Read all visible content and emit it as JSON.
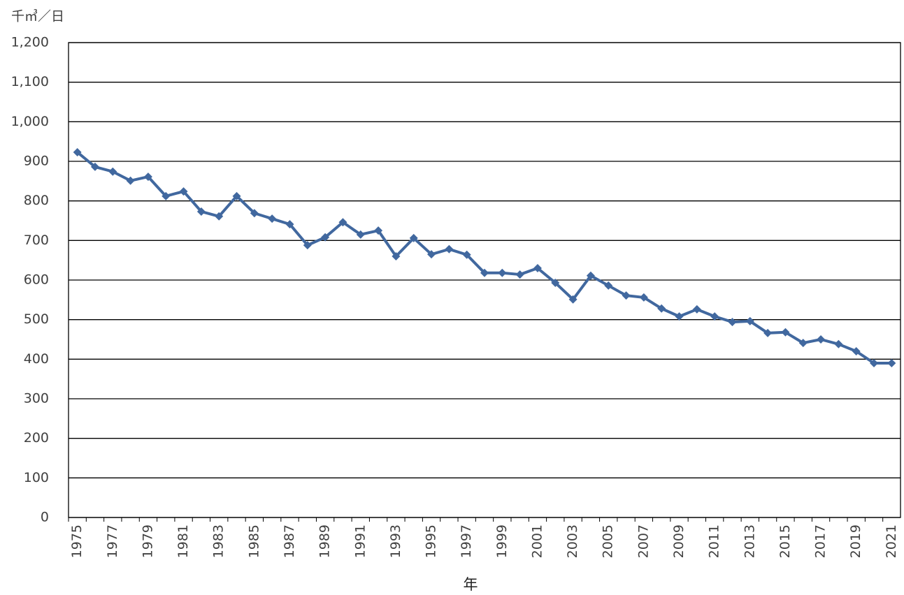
{
  "chart_data": {
    "type": "line",
    "y_label": "千㎥／日",
    "x_label": "年",
    "categories": [
      "1975",
      null,
      "1977",
      null,
      "1979",
      null,
      "1981",
      null,
      "1983",
      null,
      "1985",
      null,
      "1987",
      null,
      "1989",
      null,
      "1991",
      null,
      "1993",
      null,
      "1995",
      null,
      "1997",
      null,
      "1999",
      null,
      "2001",
      null,
      "2003",
      null,
      "2005",
      null,
      "2007",
      null,
      "2009",
      null,
      "2011",
      null,
      "2013",
      null,
      "2015",
      null,
      "2017",
      null,
      "2019",
      null,
      "2021"
    ],
    "series": [
      {
        "color": "#41689f",
        "values": [
          923,
          886,
          874,
          851,
          861,
          812,
          824,
          773,
          761,
          812,
          769,
          755,
          741,
          688,
          708,
          746,
          715,
          725,
          660,
          706,
          665,
          678,
          664,
          618,
          618,
          614,
          630,
          593,
          551,
          611,
          586,
          561,
          556,
          528,
          508,
          526,
          508,
          494,
          496,
          466,
          468,
          441,
          450,
          438,
          420,
          390,
          390
        ]
      }
    ],
    "ylim": [
      0,
      1200
    ],
    "yticks": [
      0,
      100,
      200,
      300,
      400,
      500,
      600,
      700,
      800,
      900,
      {
        "value": 1000,
        "label": "1,000"
      },
      {
        "value": 1100,
        "label": "1,100"
      },
      {
        "value": 1200,
        "label": "1,200"
      }
    ],
    "grid": true
  }
}
